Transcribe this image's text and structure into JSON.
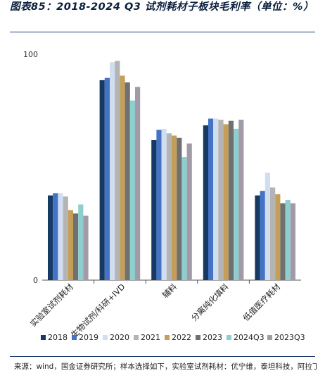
{
  "title_text": "图表85：2018-2024 Q3 试剂耗材子板块毛利率（单位：%）",
  "source_text": "来源：wind，国金证券研究所；样本选择如下，实验室试剂耗材：优宁维，泰坦科技，阿拉丁，洁特生物；生物试剂：诺唯赞，义翘神州，百普赛斯；辅料：键",
  "colors": [
    "#173a64",
    "#4472c4",
    "#d0def0",
    "#b4b4b4",
    "#c59f5a",
    "#707070",
    "#8dcfcf",
    "#a39aa8"
  ],
  "chart_data": {
    "type": "bar",
    "title": "2018-2024 Q3 试剂耗材子板块毛利率（单位：%）",
    "xlabel": "",
    "ylabel": "",
    "ylim": [
      0,
      100
    ],
    "y_ticks": [
      "0",
      "100"
    ],
    "legend_position": "bottom",
    "grid": false,
    "categories": [
      "实验室试剂耗材",
      "生物试剂/科研+IVD",
      "辅料",
      "分离纯化填料",
      "低值医疗耗材"
    ],
    "series": [
      {
        "name": "2018",
        "values": [
          37.5,
          88.5,
          62.0,
          68.5,
          37.5
        ]
      },
      {
        "name": "2019",
        "values": [
          38.5,
          89.5,
          66.5,
          71.5,
          39.5
        ]
      },
      {
        "name": "2020",
        "values": [
          38.5,
          96.5,
          67.0,
          71.5,
          47.5
        ]
      },
      {
        "name": "2021",
        "values": [
          37.0,
          97.0,
          65.0,
          71.0,
          41.0
        ]
      },
      {
        "name": "2022",
        "values": [
          31.0,
          90.5,
          64.0,
          69.0,
          38.0
        ]
      },
      {
        "name": "2023",
        "values": [
          29.5,
          87.5,
          63.0,
          70.5,
          34.0
        ]
      },
      {
        "name": "2024Q3",
        "values": [
          33.5,
          79.5,
          54.5,
          67.0,
          35.5
        ]
      },
      {
        "name": "2023Q3",
        "values": [
          28.5,
          85.5,
          60.5,
          71.0,
          34.0
        ]
      }
    ]
  }
}
